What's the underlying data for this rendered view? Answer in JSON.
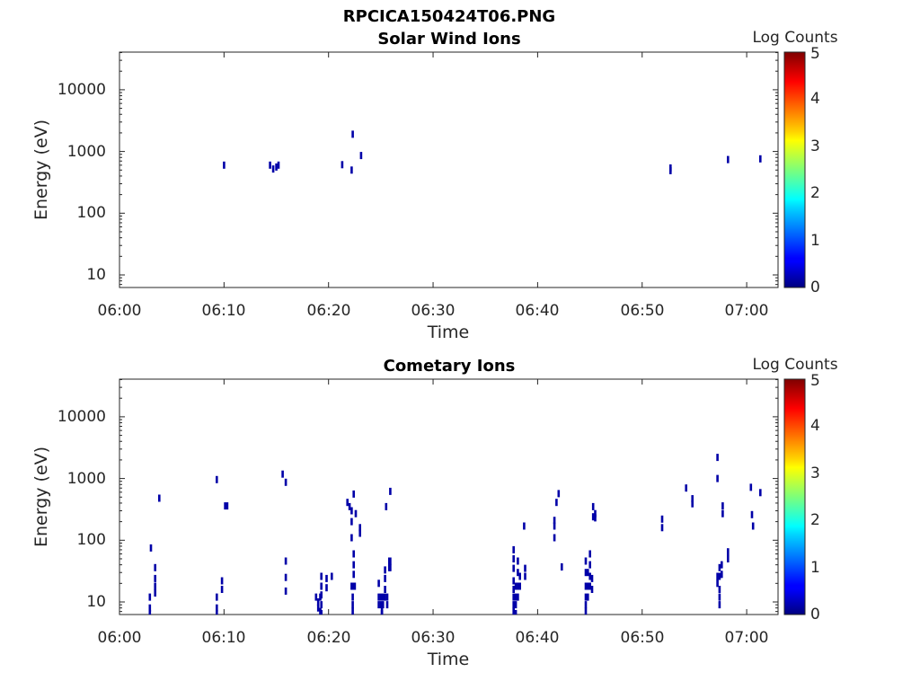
{
  "figure_title": "RPCICA150424T06.PNG",
  "colorbar": {
    "label": "Log Counts",
    "ticks": [
      "0",
      "1",
      "2",
      "3",
      "4",
      "5"
    ],
    "range": [
      0,
      5
    ],
    "colormap": "jet"
  },
  "chart_data": [
    {
      "type": "heatmap",
      "title": "Solar Wind Ions",
      "xlabel": "Time",
      "ylabel": "Energy (eV)",
      "x_ticks": [
        "06:00",
        "06:10",
        "06:20",
        "06:30",
        "06:40",
        "06:50",
        "07:00"
      ],
      "y_ticks": [
        "10",
        "100",
        "1000",
        "10000"
      ],
      "y_scale": "log",
      "xlim_minutes": [
        0,
        63
      ],
      "ylim_eV": [
        6,
        40000
      ],
      "value_color": "#0000a8",
      "points": [
        {
          "t": 10.0,
          "e": 600
        },
        {
          "t": 14.4,
          "e": 600
        },
        {
          "t": 14.7,
          "e": 520
        },
        {
          "t": 15.0,
          "e": 560
        },
        {
          "t": 15.2,
          "e": 600
        },
        {
          "t": 21.3,
          "e": 610
        },
        {
          "t": 22.2,
          "e": 500
        },
        {
          "t": 22.3,
          "e": 1900
        },
        {
          "t": 23.1,
          "e": 860
        },
        {
          "t": 52.7,
          "e": 540
        },
        {
          "t": 52.7,
          "e": 490
        },
        {
          "t": 58.2,
          "e": 740
        },
        {
          "t": 61.3,
          "e": 760
        }
      ]
    },
    {
      "type": "heatmap",
      "title": "Cometary Ions",
      "xlabel": "Time",
      "ylabel": "Energy (eV)",
      "x_ticks": [
        "06:00",
        "06:10",
        "06:20",
        "06:30",
        "06:40",
        "06:50",
        "07:00"
      ],
      "y_ticks": [
        "10",
        "100",
        "1000",
        "10000"
      ],
      "y_scale": "log",
      "xlim_minutes": [
        0,
        63
      ],
      "ylim_eV": [
        6,
        40000
      ],
      "value_color": "#0000a8",
      "points": [
        {
          "t": 3.0,
          "e": 75
        },
        {
          "t": 2.9,
          "e": 12
        },
        {
          "t": 2.9,
          "e": 8
        },
        {
          "t": 2.9,
          "e": 6.5
        },
        {
          "t": 3.4,
          "e": 36
        },
        {
          "t": 3.4,
          "e": 24
        },
        {
          "t": 3.4,
          "e": 18
        },
        {
          "t": 3.4,
          "e": 14
        },
        {
          "t": 3.8,
          "e": 480
        },
        {
          "t": 9.3,
          "e": 960
        },
        {
          "t": 9.3,
          "e": 12
        },
        {
          "t": 9.3,
          "e": 8
        },
        {
          "t": 9.3,
          "e": 6.5
        },
        {
          "t": 9.8,
          "e": 22
        },
        {
          "t": 9.8,
          "e": 16
        },
        {
          "t": 10.1,
          "e": 360
        },
        {
          "t": 10.3,
          "e": 360
        },
        {
          "t": 15.6,
          "e": 1180
        },
        {
          "t": 15.9,
          "e": 870
        },
        {
          "t": 15.9,
          "e": 46
        },
        {
          "t": 15.9,
          "e": 25
        },
        {
          "t": 15.9,
          "e": 15
        },
        {
          "t": 18.8,
          "e": 12
        },
        {
          "t": 19.0,
          "e": 10
        },
        {
          "t": 19.0,
          "e": 8
        },
        {
          "t": 19.2,
          "e": 12
        },
        {
          "t": 19.2,
          "e": 7
        },
        {
          "t": 19.3,
          "e": 26
        },
        {
          "t": 19.3,
          "e": 18
        },
        {
          "t": 19.3,
          "e": 13
        },
        {
          "t": 19.3,
          "e": 9
        },
        {
          "t": 19.3,
          "e": 6.5
        },
        {
          "t": 19.8,
          "e": 24
        },
        {
          "t": 19.8,
          "e": 17
        },
        {
          "t": 20.3,
          "e": 26
        },
        {
          "t": 21.8,
          "e": 410
        },
        {
          "t": 22.0,
          "e": 350
        },
        {
          "t": 22.2,
          "e": 300
        },
        {
          "t": 22.2,
          "e": 200
        },
        {
          "t": 22.2,
          "e": 110
        },
        {
          "t": 22.4,
          "e": 560
        },
        {
          "t": 22.6,
          "e": 270
        },
        {
          "t": 22.2,
          "e": 18
        },
        {
          "t": 22.4,
          "e": 18
        },
        {
          "t": 22.5,
          "e": 18
        },
        {
          "t": 22.4,
          "e": 60
        },
        {
          "t": 22.4,
          "e": 40
        },
        {
          "t": 22.4,
          "e": 28
        },
        {
          "t": 22.3,
          "e": 12
        },
        {
          "t": 22.3,
          "e": 9
        },
        {
          "t": 22.3,
          "e": 7
        },
        {
          "t": 23.0,
          "e": 160
        },
        {
          "t": 23.0,
          "e": 130
        },
        {
          "t": 24.8,
          "e": 20
        },
        {
          "t": 24.8,
          "e": 12
        },
        {
          "t": 24.8,
          "e": 9
        },
        {
          "t": 25.0,
          "e": 12
        },
        {
          "t": 25.0,
          "e": 9
        },
        {
          "t": 25.2,
          "e": 12
        },
        {
          "t": 25.2,
          "e": 9
        },
        {
          "t": 25.1,
          "e": 7
        },
        {
          "t": 25.1,
          "e": 6.5
        },
        {
          "t": 25.4,
          "e": 33
        },
        {
          "t": 25.4,
          "e": 24
        },
        {
          "t": 25.4,
          "e": 16
        },
        {
          "t": 25.4,
          "e": 12
        },
        {
          "t": 25.6,
          "e": 12
        },
        {
          "t": 25.6,
          "e": 9
        },
        {
          "t": 25.8,
          "e": 46
        },
        {
          "t": 25.8,
          "e": 36
        },
        {
          "t": 25.9,
          "e": 46
        },
        {
          "t": 25.9,
          "e": 36
        },
        {
          "t": 25.5,
          "e": 350
        },
        {
          "t": 25.9,
          "e": 620
        },
        {
          "t": 37.7,
          "e": 70
        },
        {
          "t": 37.7,
          "e": 50
        },
        {
          "t": 37.7,
          "e": 35
        },
        {
          "t": 37.7,
          "e": 22
        },
        {
          "t": 37.7,
          "e": 16
        },
        {
          "t": 37.7,
          "e": 12
        },
        {
          "t": 37.7,
          "e": 9
        },
        {
          "t": 37.7,
          "e": 7
        },
        {
          "t": 37.9,
          "e": 18
        },
        {
          "t": 37.9,
          "e": 12
        },
        {
          "t": 37.9,
          "e": 9
        },
        {
          "t": 37.9,
          "e": 6.5
        },
        {
          "t": 38.1,
          "e": 46
        },
        {
          "t": 38.1,
          "e": 30
        },
        {
          "t": 38.1,
          "e": 18
        },
        {
          "t": 38.1,
          "e": 12
        },
        {
          "t": 38.3,
          "e": 26
        },
        {
          "t": 38.3,
          "e": 18
        },
        {
          "t": 38.7,
          "e": 170
        },
        {
          "t": 38.8,
          "e": 35
        },
        {
          "t": 38.8,
          "e": 26
        },
        {
          "t": 41.6,
          "e": 210
        },
        {
          "t": 41.6,
          "e": 170
        },
        {
          "t": 41.6,
          "e": 110
        },
        {
          "t": 41.8,
          "e": 410
        },
        {
          "t": 42.0,
          "e": 570
        },
        {
          "t": 42.3,
          "e": 37
        },
        {
          "t": 44.6,
          "e": 46
        },
        {
          "t": 44.6,
          "e": 30
        },
        {
          "t": 44.6,
          "e": 18
        },
        {
          "t": 44.6,
          "e": 12
        },
        {
          "t": 44.6,
          "e": 9
        },
        {
          "t": 44.6,
          "e": 7
        },
        {
          "t": 44.8,
          "e": 30
        },
        {
          "t": 44.8,
          "e": 18
        },
        {
          "t": 44.8,
          "e": 12
        },
        {
          "t": 45.0,
          "e": 60
        },
        {
          "t": 45.0,
          "e": 40
        },
        {
          "t": 45.0,
          "e": 26
        },
        {
          "t": 45.0,
          "e": 18
        },
        {
          "t": 45.2,
          "e": 24
        },
        {
          "t": 45.2,
          "e": 16
        },
        {
          "t": 45.3,
          "e": 350
        },
        {
          "t": 45.3,
          "e": 240
        },
        {
          "t": 45.5,
          "e": 270
        },
        {
          "t": 45.5,
          "e": 230
        },
        {
          "t": 51.9,
          "e": 220
        },
        {
          "t": 51.9,
          "e": 160
        },
        {
          "t": 54.2,
          "e": 700
        },
        {
          "t": 54.8,
          "e": 470
        },
        {
          "t": 54.8,
          "e": 390
        },
        {
          "t": 57.2,
          "e": 2200
        },
        {
          "t": 57.2,
          "e": 1000
        },
        {
          "t": 57.2,
          "e": 26
        },
        {
          "t": 57.2,
          "e": 20
        },
        {
          "t": 57.4,
          "e": 36
        },
        {
          "t": 57.4,
          "e": 26
        },
        {
          "t": 57.4,
          "e": 16
        },
        {
          "t": 57.4,
          "e": 12
        },
        {
          "t": 57.4,
          "e": 9
        },
        {
          "t": 57.6,
          "e": 40
        },
        {
          "t": 57.6,
          "e": 28
        },
        {
          "t": 57.7,
          "e": 360
        },
        {
          "t": 57.7,
          "e": 270
        },
        {
          "t": 58.2,
          "e": 65
        },
        {
          "t": 58.2,
          "e": 50
        },
        {
          "t": 60.4,
          "e": 720
        },
        {
          "t": 60.5,
          "e": 260
        },
        {
          "t": 60.6,
          "e": 170
        },
        {
          "t": 61.3,
          "e": 590
        }
      ]
    }
  ]
}
